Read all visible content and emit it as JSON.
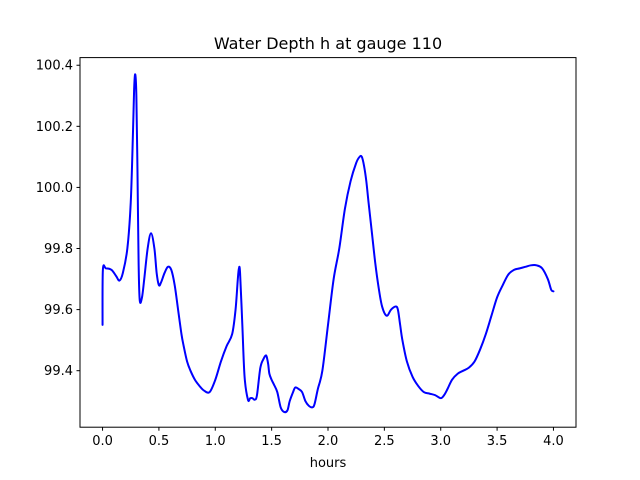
{
  "chart_data": {
    "type": "line",
    "title": "Water Depth h at gauge 110",
    "xlabel": "hours",
    "ylabel": "",
    "xlim": [
      -0.2,
      4.2
    ],
    "ylim": [
      99.215,
      100.425
    ],
    "xticks": [
      0.0,
      0.5,
      1.0,
      1.5,
      2.0,
      2.5,
      3.0,
      3.5,
      4.0
    ],
    "xtick_labels": [
      "0.0",
      "0.5",
      "1.0",
      "1.5",
      "2.0",
      "2.5",
      "3.0",
      "3.5",
      "4.0"
    ],
    "yticks": [
      99.4,
      99.6,
      99.8,
      100.0,
      100.2,
      100.4
    ],
    "ytick_labels": [
      "99.4",
      "99.6",
      "99.8",
      "100.0",
      "100.2",
      "100.4"
    ],
    "grid": false,
    "colors": {
      "line": "#0000ff"
    },
    "series": [
      {
        "x": [
          0.0,
          0.003,
          0.03,
          0.08,
          0.12,
          0.15,
          0.18,
          0.22,
          0.25,
          0.27,
          0.28,
          0.29,
          0.3,
          0.31,
          0.32,
          0.33,
          0.35,
          0.37,
          0.4,
          0.43,
          0.46,
          0.48,
          0.5,
          0.52,
          0.55,
          0.58,
          0.61,
          0.64,
          0.67,
          0.7,
          0.72,
          0.75,
          0.78,
          0.82,
          0.86,
          0.9,
          0.95,
          1.0,
          1.05,
          1.1,
          1.15,
          1.18,
          1.2,
          1.21,
          1.22,
          1.24,
          1.26,
          1.29,
          1.31,
          1.33,
          1.35,
          1.37,
          1.4,
          1.43,
          1.45,
          1.46,
          1.47,
          1.48,
          1.5,
          1.52,
          1.55,
          1.58,
          1.61,
          1.64,
          1.66,
          1.69,
          1.71,
          1.74,
          1.77,
          1.8,
          1.83,
          1.86,
          1.88,
          1.91,
          1.95,
          2.0,
          2.05,
          2.1,
          2.15,
          2.2,
          2.25,
          2.28,
          2.3,
          2.32,
          2.34,
          2.36,
          2.39,
          2.42,
          2.45,
          2.48,
          2.52,
          2.56,
          2.6,
          2.62,
          2.64,
          2.66,
          2.7,
          2.75,
          2.8,
          2.85,
          2.9,
          2.95,
          3.0,
          3.03,
          3.06,
          3.1,
          3.15,
          3.2,
          3.25,
          3.3,
          3.35,
          3.4,
          3.45,
          3.5,
          3.55,
          3.6,
          3.65,
          3.7,
          3.75,
          3.8,
          3.85,
          3.9,
          3.95,
          3.98,
          4.0
        ],
        "y": [
          99.55,
          99.73,
          99.735,
          99.73,
          99.71,
          99.695,
          99.72,
          99.8,
          99.95,
          100.18,
          100.32,
          100.37,
          100.3,
          100.05,
          99.75,
          99.63,
          99.64,
          99.7,
          99.8,
          99.85,
          99.8,
          99.72,
          99.68,
          99.69,
          99.72,
          99.74,
          99.73,
          99.68,
          99.6,
          99.52,
          99.48,
          99.43,
          99.4,
          99.37,
          99.35,
          99.335,
          99.33,
          99.37,
          99.43,
          99.48,
          99.52,
          99.6,
          99.7,
          99.735,
          99.72,
          99.55,
          99.38,
          99.305,
          99.31,
          99.31,
          99.305,
          99.32,
          99.41,
          99.44,
          99.45,
          99.44,
          99.42,
          99.39,
          99.37,
          99.355,
          99.33,
          99.28,
          99.265,
          99.27,
          99.3,
          99.33,
          99.345,
          99.34,
          99.33,
          99.3,
          99.285,
          99.28,
          99.29,
          99.34,
          99.4,
          99.55,
          99.7,
          99.8,
          99.93,
          100.02,
          100.08,
          100.1,
          100.1,
          100.07,
          100.02,
          99.95,
          99.85,
          99.75,
          99.67,
          99.61,
          99.58,
          99.6,
          99.61,
          99.6,
          99.55,
          99.5,
          99.43,
          99.38,
          99.35,
          99.33,
          99.325,
          99.32,
          99.31,
          99.32,
          99.34,
          99.37,
          99.39,
          99.4,
          99.41,
          99.43,
          99.47,
          99.52,
          99.58,
          99.64,
          99.68,
          99.715,
          99.73,
          99.735,
          99.74,
          99.745,
          99.745,
          99.735,
          99.7,
          99.665,
          99.66
        ]
      }
    ]
  }
}
